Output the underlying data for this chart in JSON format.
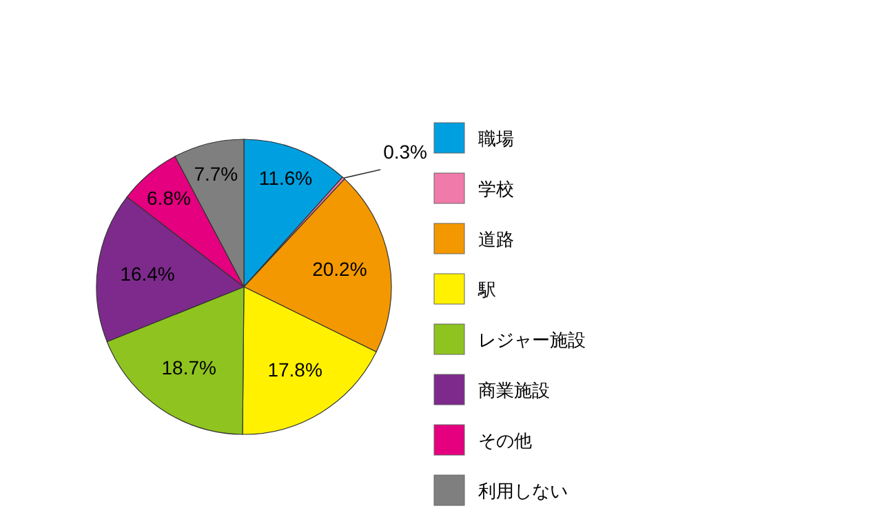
{
  "chart_data": {
    "type": "pie",
    "categories": [
      "職場",
      "学校",
      "道路",
      "駅",
      "レジャー施設",
      "商業施設",
      "その他",
      "利用しない"
    ],
    "values": [
      11.6,
      0.3,
      20.2,
      17.8,
      18.7,
      16.4,
      6.8,
      7.7
    ],
    "value_labels": [
      "11.6%",
      "0.3%",
      "20.2%",
      "17.8%",
      "18.7%",
      "16.4%",
      "6.8%",
      "7.7%"
    ],
    "colors": [
      "#00a0e0",
      "#f07aaa",
      "#f39800",
      "#fff100",
      "#8fc31f",
      "#7d2a8c",
      "#e4007f",
      "#7f7f7f"
    ],
    "legend": "right"
  }
}
